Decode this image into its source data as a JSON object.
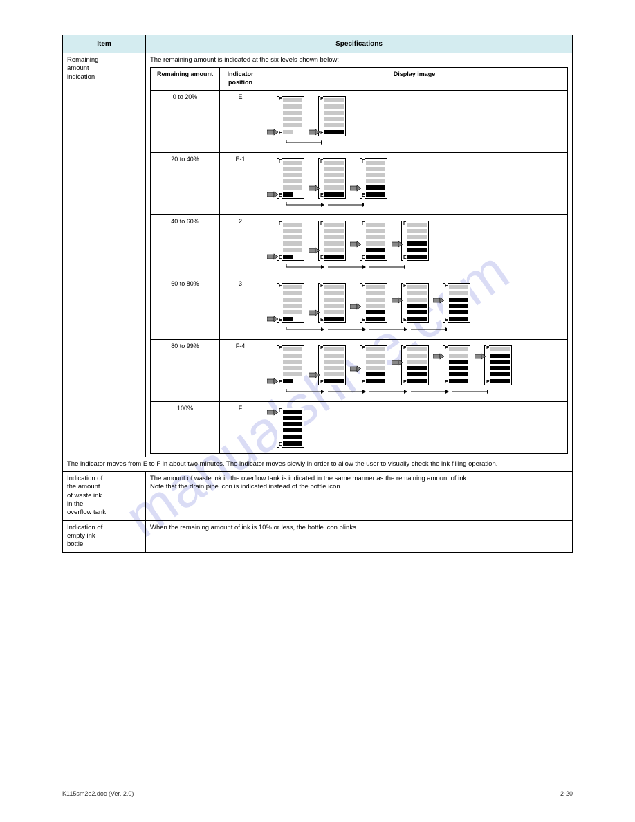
{
  "header": {
    "col1": "Item",
    "col2": "Specifications"
  },
  "row_remaining": {
    "label": "Remaining\namount\nindication",
    "intro": "The remaining amount is indicated at the six levels shown below:",
    "inner_header": {
      "c1": "Remaining amount",
      "c2": "Indicator position",
      "c3": "Display image"
    },
    "rows": [
      {
        "amount": "0 to 20%",
        "pos": "E",
        "gauges": [
          {
            "fill": 0,
            "ptr": 5,
            "short": true
          },
          {
            "fill": 1,
            "ptr": 5
          }
        ],
        "arrow_pairs": 1
      },
      {
        "amount": "20 to 40%",
        "pos": "E-1",
        "gauges": [
          {
            "fill": 1,
            "ptr": 5,
            "short": true
          },
          {
            "fill": 1,
            "ptr": 4
          },
          {
            "fill": 2,
            "ptr": 4
          }
        ],
        "arrow_pairs": 2
      },
      {
        "amount": "40 to 60%",
        "pos": "2",
        "gauges": [
          {
            "fill": 1,
            "ptr": 5,
            "short": true
          },
          {
            "fill": 1,
            "ptr": 4
          },
          {
            "fill": 2,
            "ptr": 3
          },
          {
            "fill": 3,
            "ptr": 3
          }
        ],
        "arrow_pairs": 3
      },
      {
        "amount": "60 to 80%",
        "pos": "3",
        "gauges": [
          {
            "fill": 1,
            "ptr": 5,
            "short": true
          },
          {
            "fill": 1,
            "ptr": 4
          },
          {
            "fill": 2,
            "ptr": 3
          },
          {
            "fill": 3,
            "ptr": 2
          },
          {
            "fill": 4,
            "ptr": 2
          }
        ],
        "arrow_pairs": 4
      },
      {
        "amount": "80 to 99%",
        "pos": "F-4",
        "gauges": [
          {
            "fill": 1,
            "ptr": 5,
            "short": true
          },
          {
            "fill": 1,
            "ptr": 4
          },
          {
            "fill": 2,
            "ptr": 3
          },
          {
            "fill": 3,
            "ptr": 2
          },
          {
            "fill": 4,
            "ptr": 1
          },
          {
            "fill": 5,
            "ptr": 1
          }
        ],
        "arrow_pairs": 5
      },
      {
        "amount": "100%",
        "pos": "F",
        "gauges": [
          {
            "fill": 6,
            "ptr": 0
          }
        ],
        "arrow_pairs": 0
      }
    ]
  },
  "row_move": {
    "text": "The indicator moves from E to F in about two minutes. The indicator moves slowly in order to allow the user to visually check the ink filling operation."
  },
  "row_overflow": {
    "label": "Indication of\nthe amount\nof waste ink\nin the\noverflow tank",
    "text": "The amount of waste ink in the overflow tank is indicated in the same manner as the remaining amount of ink.\nNote that the drain pipe icon is indicated instead of the bottle icon."
  },
  "row_empty": {
    "label": "Indication of\nempty ink\nbottle",
    "text": "When the remaining amount of ink is 10% or less, the bottle icon blinks."
  },
  "footer": {
    "left": "K115sm2e2.doc (Ver. 2.0)",
    "right": "2-20"
  },
  "watermark": "manualshive.com",
  "colors": {
    "header_bg": "#d4ecf0",
    "bar_empty": "#c8c8c8",
    "bar_fill": "#000000",
    "border": "#000000",
    "watermark": "#5b63d6"
  }
}
